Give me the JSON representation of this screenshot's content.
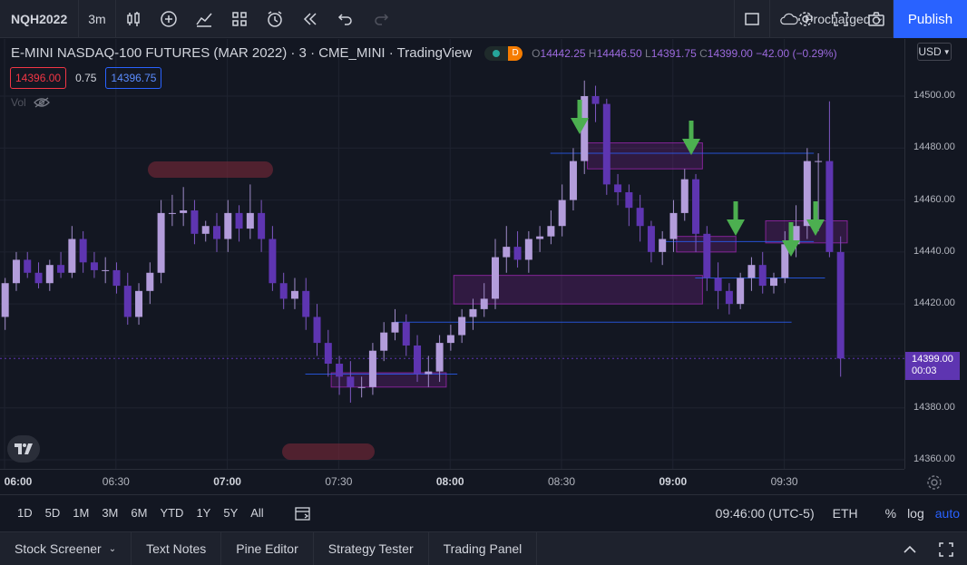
{
  "toolbar": {
    "symbol": "NQH2022",
    "interval": "3m",
    "layout_name": "Procharged",
    "publish_label": "Publish"
  },
  "legend": {
    "title": "E-MINI NASDAQ-100 FUTURES (MAR 2022) · 3 · CME_MINI · TradingView",
    "session_badge": "D",
    "open_label": "O",
    "open": "14442.25",
    "high_label": "H",
    "high": "14446.50",
    "low_label": "L",
    "low": "14391.75",
    "close_label": "C",
    "close": "14399.00",
    "change": "−42.00 (−0.29%)"
  },
  "quote": {
    "bid": "14396.00",
    "spread": "0.75",
    "ask": "14396.75"
  },
  "volume": {
    "label": "Vol"
  },
  "price_axis": {
    "currency": "USD",
    "labels": [
      "14500.00",
      "14480.00",
      "14460.00",
      "14440.00",
      "14420.00",
      "14400.00",
      "14380.00",
      "14360.00"
    ],
    "current_price": "14399.00",
    "countdown": "00:03"
  },
  "time_axis": {
    "labels": [
      {
        "text": "06:00",
        "major": true
      },
      {
        "text": "06:30",
        "major": false
      },
      {
        "text": "07:00",
        "major": true
      },
      {
        "text": "07:30",
        "major": false
      },
      {
        "text": "08:00",
        "major": true
      },
      {
        "text": "08:30",
        "major": false
      },
      {
        "text": "09:00",
        "major": true
      },
      {
        "text": "09:30",
        "major": false
      }
    ]
  },
  "range_bar": {
    "ranges": [
      "1D",
      "5D",
      "1M",
      "3M",
      "6M",
      "YTD",
      "1Y",
      "5Y",
      "All"
    ],
    "clock": "09:46:00 (UTC-5)",
    "session": "ETH",
    "percent": "%",
    "log": "log",
    "auto": "auto"
  },
  "bottom_tabs": [
    "Stock Screener",
    "Text Notes",
    "Pine Editor",
    "Strategy Tester",
    "Trading Panel"
  ],
  "colors": {
    "up": "#b39ddb",
    "down": "#5e35b1",
    "zone": "#9c27b0",
    "arrow": "#4caf50",
    "accent": "#2962ff"
  },
  "chart_data": {
    "type": "candlestick",
    "ylim": [
      14355,
      14520
    ],
    "x": [
      "05:54",
      "05:57",
      "06:00",
      "06:03",
      "06:06",
      "06:09",
      "06:12",
      "06:15",
      "06:18",
      "06:21",
      "06:24",
      "06:27",
      "06:30",
      "06:33",
      "06:36",
      "06:39",
      "06:42",
      "06:45",
      "06:48",
      "06:51",
      "06:54",
      "06:57",
      "07:00",
      "07:03",
      "07:06",
      "07:09",
      "07:12",
      "07:15",
      "07:18",
      "07:21",
      "07:24",
      "07:27",
      "07:30",
      "07:33",
      "07:36",
      "07:39",
      "07:42",
      "07:45",
      "07:48",
      "07:51",
      "07:54",
      "07:57",
      "08:00",
      "08:03",
      "08:06",
      "08:09",
      "08:12",
      "08:15",
      "08:18",
      "08:21",
      "08:24",
      "08:27",
      "08:30",
      "08:33",
      "08:36",
      "08:39",
      "08:42",
      "08:45",
      "08:48",
      "08:51",
      "08:54",
      "08:57",
      "09:00",
      "09:03",
      "09:06",
      "09:09",
      "09:12",
      "09:15",
      "09:18",
      "09:21",
      "09:24",
      "09:27",
      "09:30",
      "09:33",
      "09:36",
      "09:39",
      "09:42"
    ],
    "open": [
      14420,
      14415,
      14428,
      14437,
      14432,
      14428,
      14435,
      14432,
      14445,
      14436,
      14433,
      14433,
      14427,
      14415,
      14425,
      14432,
      14455,
      14455,
      14456,
      14447,
      14450,
      14445,
      14455,
      14449,
      14455,
      14445,
      14428,
      14422,
      14425,
      14415,
      14405,
      14397,
      14392,
      14388,
      14388,
      14402,
      14409,
      14413,
      14404,
      14393,
      14394,
      14405,
      14408,
      14415,
      14418,
      14422,
      14438,
      14442,
      14437,
      14445,
      14446,
      14450,
      14460,
      14475,
      14500,
      14497,
      14466,
      14463,
      14457,
      14450,
      14440,
      14445,
      14455,
      14468,
      14447,
      14430,
      14425,
      14420,
      14430,
      14435,
      14427,
      14430,
      14443,
      14450,
      14475,
      14475,
      14440
    ],
    "close": [
      14412,
      14428,
      14437,
      14432,
      14428,
      14435,
      14432,
      14445,
      14436,
      14433,
      14433,
      14427,
      14415,
      14425,
      14432,
      14455,
      14455,
      14456,
      14447,
      14450,
      14445,
      14455,
      14449,
      14455,
      14445,
      14428,
      14422,
      14425,
      14415,
      14405,
      14397,
      14392,
      14388,
      14388,
      14402,
      14409,
      14413,
      14404,
      14393,
      14394,
      14405,
      14408,
      14415,
      14418,
      14422,
      14438,
      14442,
      14437,
      14445,
      14446,
      14450,
      14460,
      14475,
      14500,
      14497,
      14466,
      14463,
      14457,
      14450,
      14440,
      14445,
      14455,
      14468,
      14447,
      14430,
      14425,
      14420,
      14430,
      14435,
      14427,
      14430,
      14443,
      14450,
      14475,
      14475,
      14440,
      14399
    ],
    "high": [
      14425,
      14430,
      14440,
      14440,
      14436,
      14437,
      14440,
      14450,
      14448,
      14440,
      14438,
      14436,
      14432,
      14428,
      14436,
      14460,
      14462,
      14465,
      14460,
      14452,
      14455,
      14460,
      14458,
      14466,
      14460,
      14450,
      14432,
      14430,
      14430,
      14420,
      14410,
      14400,
      14398,
      14392,
      14405,
      14413,
      14418,
      14416,
      14408,
      14400,
      14408,
      14412,
      14418,
      14422,
      14428,
      14445,
      14450,
      14448,
      14448,
      14450,
      14456,
      14466,
      14480,
      14506,
      14504,
      14499,
      14470,
      14466,
      14462,
      14452,
      14448,
      14460,
      14472,
      14470,
      14450,
      14436,
      14428,
      14432,
      14438,
      14440,
      14432,
      14448,
      14458,
      14480,
      14478,
      14498,
      14446
    ],
    "low": [
      14408,
      14410,
      14425,
      14430,
      14426,
      14425,
      14430,
      14430,
      14432,
      14430,
      14428,
      14424,
      14412,
      14412,
      14420,
      14428,
      14450,
      14450,
      14443,
      14444,
      14440,
      14440,
      14444,
      14445,
      14440,
      14425,
      14418,
      14418,
      14410,
      14400,
      14392,
      14385,
      14382,
      14384,
      14385,
      14398,
      14406,
      14400,
      14390,
      14388,
      14390,
      14402,
      14405,
      14410,
      14415,
      14418,
      14432,
      14434,
      14432,
      14440,
      14443,
      14446,
      14456,
      14470,
      14490,
      14462,
      14458,
      14450,
      14444,
      14436,
      14435,
      14440,
      14452,
      14440,
      14425,
      14418,
      14416,
      14418,
      14425,
      14424,
      14424,
      14428,
      14438,
      14445,
      14448,
      14438,
      14392
    ]
  }
}
